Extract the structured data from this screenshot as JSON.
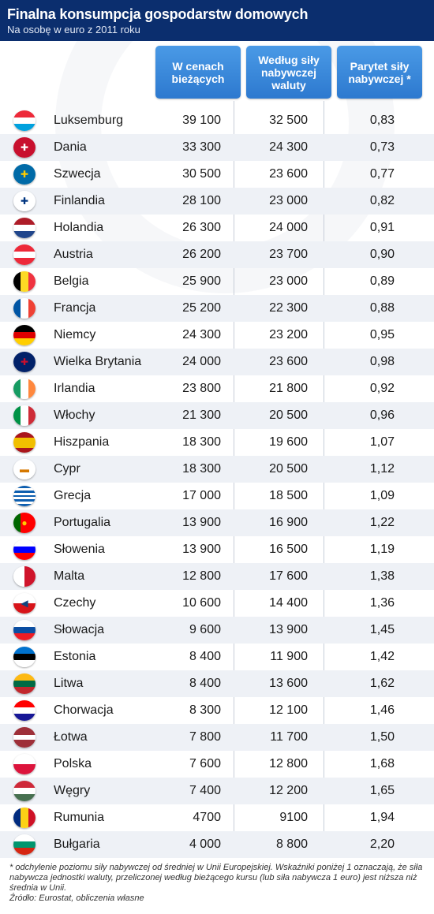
{
  "header": {
    "title": "Finalna konsumpcja gospodarstw domowych",
    "subtitle": "Na osobę w euro z 2011 roku"
  },
  "columns": [
    "W cenach bieżących",
    "Według siły nabywczej waluty",
    "Parytet siły nabywczej *"
  ],
  "chart_data": {
    "type": "table",
    "title": "Finalna konsumpcja gospodarstw domowych",
    "subtitle": "Na osobę w euro z 2011 roku",
    "columns": [
      "W cenach bieżących",
      "Według siły nabywczej waluty",
      "Parytet siły nabywczej *"
    ],
    "rows": [
      {
        "country": "Luksemburg",
        "current": "39 100",
        "ppp_value": "32 500",
        "parity": "0,83"
      },
      {
        "country": "Dania",
        "current": "33 300",
        "ppp_value": "24 300",
        "parity": "0,73"
      },
      {
        "country": "Szwecja",
        "current": "30 500",
        "ppp_value": "23 600",
        "parity": "0,77"
      },
      {
        "country": "Finlandia",
        "current": "28 100",
        "ppp_value": "23 000",
        "parity": "0,82"
      },
      {
        "country": "Holandia",
        "current": "26 300",
        "ppp_value": "24 000",
        "parity": "0,91"
      },
      {
        "country": "Austria",
        "current": "26 200",
        "ppp_value": "23 700",
        "parity": "0,90"
      },
      {
        "country": "Belgia",
        "current": "25 900",
        "ppp_value": "23 000",
        "parity": "0,89"
      },
      {
        "country": "Francja",
        "current": "25 200",
        "ppp_value": "22 300",
        "parity": "0,88"
      },
      {
        "country": "Niemcy",
        "current": "24 300",
        "ppp_value": "23 200",
        "parity": "0,95"
      },
      {
        "country": "Wielka Brytania",
        "current": "24 000",
        "ppp_value": "23 600",
        "parity": "0,98"
      },
      {
        "country": "Irlandia",
        "current": "23 800",
        "ppp_value": "21 800",
        "parity": "0,92"
      },
      {
        "country": "Włochy",
        "current": "21 300",
        "ppp_value": "20 500",
        "parity": "0,96"
      },
      {
        "country": "Hiszpania",
        "current": "18 300",
        "ppp_value": "19 600",
        "parity": "1,07"
      },
      {
        "country": "Cypr",
        "current": "18 300",
        "ppp_value": "20 500",
        "parity": "1,12"
      },
      {
        "country": "Grecja",
        "current": "17 000",
        "ppp_value": "18 500",
        "parity": "1,09"
      },
      {
        "country": "Portugalia",
        "current": "13 900",
        "ppp_value": "16 900",
        "parity": "1,22"
      },
      {
        "country": "Słowenia",
        "current": "13 900",
        "ppp_value": "16 500",
        "parity": "1,19"
      },
      {
        "country": "Malta",
        "current": "12 800",
        "ppp_value": "17 600",
        "parity": "1,38"
      },
      {
        "country": "Czechy",
        "current": "10 600",
        "ppp_value": "14 400",
        "parity": "1,36"
      },
      {
        "country": "Słowacja",
        "current": "9 600",
        "ppp_value": "13 900",
        "parity": "1,45"
      },
      {
        "country": "Estonia",
        "current": "8 400",
        "ppp_value": "11 900",
        "parity": "1,42"
      },
      {
        "country": "Litwa",
        "current": "8 400",
        "ppp_value": "13 600",
        "parity": "1,62"
      },
      {
        "country": "Chorwacja",
        "current": "8 300",
        "ppp_value": "12 100",
        "parity": "1,46"
      },
      {
        "country": "Łotwa",
        "current": "7 800",
        "ppp_value": "11 700",
        "parity": "1,50"
      },
      {
        "country": "Polska",
        "current": "7 600",
        "ppp_value": "12 800",
        "parity": "1,68"
      },
      {
        "country": "Węgry",
        "current": "7 400",
        "ppp_value": "12 200",
        "parity": "1,65"
      },
      {
        "country": "Rumunia",
        "current": "4700",
        "ppp_value": "9100",
        "parity": "1,94"
      },
      {
        "country": "Bułgaria",
        "current": "4 000",
        "ppp_value": "8 800",
        "parity": "2,20"
      }
    ]
  },
  "flags": {
    "Luksemburg": {
      "layout": "v",
      "colors": [
        "#ed2939",
        "#ffffff",
        "#00a1de"
      ]
    },
    "Dania": {
      "layout": "v",
      "colors": [
        "#c8102e",
        "#c8102e"
      ],
      "icon": "nordic-cross",
      "glyph": "✚",
      "glyph_color": "#ffffff"
    },
    "Szwecja": {
      "layout": "v",
      "colors": [
        "#006aa7",
        "#006aa7"
      ],
      "icon": "nordic-cross",
      "glyph": "✚",
      "glyph_color": "#fecc00"
    },
    "Finlandia": {
      "layout": "v",
      "colors": [
        "#ffffff",
        "#ffffff"
      ],
      "icon": "nordic-cross",
      "glyph": "✚",
      "glyph_color": "#003580"
    },
    "Holandia": {
      "layout": "v",
      "colors": [
        "#ae1c28",
        "#ffffff",
        "#21468b"
      ]
    },
    "Austria": {
      "layout": "v",
      "colors": [
        "#ed2939",
        "#ffffff",
        "#ed2939"
      ]
    },
    "Belgia": {
      "layout": "h",
      "colors": [
        "#000000",
        "#fdda24",
        "#ef3340"
      ]
    },
    "Francja": {
      "layout": "h",
      "colors": [
        "#0055a4",
        "#ffffff",
        "#ef4135"
      ]
    },
    "Niemcy": {
      "layout": "v",
      "colors": [
        "#000000",
        "#dd0000",
        "#ffce00"
      ]
    },
    "Wielka Brytania": {
      "layout": "v",
      "colors": [
        "#012169",
        "#012169"
      ],
      "icon": "union-jack",
      "glyph": "✚",
      "glyph_color": "#c8102e"
    },
    "Irlandia": {
      "layout": "h",
      "colors": [
        "#169b62",
        "#ffffff",
        "#ff883e"
      ]
    },
    "Włochy": {
      "layout": "h",
      "colors": [
        "#009246",
        "#ffffff",
        "#ce2b37"
      ]
    },
    "Hiszpania": {
      "layout": "v",
      "colors": [
        "#aa151b",
        "#f1bf00",
        "#f1bf00",
        "#aa151b"
      ]
    },
    "Cypr": {
      "layout": "v",
      "colors": [
        "#ffffff",
        "#ffffff"
      ],
      "icon": "cyprus-map",
      "glyph": "▬",
      "glyph_color": "#d57800"
    },
    "Grecja": {
      "layout": "v",
      "colors": [
        "#0d5eaf",
        "#ffffff",
        "#0d5eaf",
        "#ffffff",
        "#0d5eaf",
        "#ffffff",
        "#0d5eaf",
        "#ffffff",
        "#0d5eaf"
      ]
    },
    "Portugalia": {
      "layout": "h",
      "colors": [
        "#006600",
        "#ff0000",
        "#ff0000"
      ],
      "icon": "armillary-sphere",
      "glyph": "●",
      "glyph_color": "#ffcc00"
    },
    "Słowenia": {
      "layout": "v",
      "colors": [
        "#ffffff",
        "#0000ff",
        "#ff0000"
      ]
    },
    "Malta": {
      "layout": "h",
      "colors": [
        "#ffffff",
        "#cf142b"
      ]
    },
    "Czechy": {
      "layout": "v",
      "colors": [
        "#ffffff",
        "#d7141a"
      ],
      "icon": "blue-triangle",
      "glyph": "◀",
      "glyph_color": "#11457e"
    },
    "Słowacja": {
      "layout": "v",
      "colors": [
        "#ffffff",
        "#0b4ea2",
        "#ee1c25"
      ]
    },
    "Estonia": {
      "layout": "v",
      "colors": [
        "#0072ce",
        "#000000",
        "#ffffff"
      ]
    },
    "Litwa": {
      "layout": "v",
      "colors": [
        "#fdb913",
        "#006a44",
        "#c1272d"
      ]
    },
    "Chorwacja": {
      "layout": "v",
      "colors": [
        "#ff0000",
        "#ffffff",
        "#171796"
      ]
    },
    "Łotwa": {
      "layout": "v",
      "colors": [
        "#9e3039",
        "#9e3039",
        "#ffffff",
        "#9e3039",
        "#9e3039"
      ]
    },
    "Polska": {
      "layout": "v",
      "colors": [
        "#ffffff",
        "#dc143c"
      ]
    },
    "Węgry": {
      "layout": "v",
      "colors": [
        "#ce2939",
        "#ffffff",
        "#477050"
      ]
    },
    "Rumunia": {
      "layout": "h",
      "colors": [
        "#002b7f",
        "#fcd116",
        "#ce1126"
      ]
    },
    "Bułgaria": {
      "layout": "v",
      "colors": [
        "#ffffff",
        "#00966e",
        "#d62612"
      ]
    }
  },
  "footer": {
    "note": "* odchylenie poziomu siły nabywczej od średniej w Unii Europejskiej. Wskaźniki poniżej 1 oznaczają, że siła nabywcza jednostki waluty, przeliczonej według bieżącego kursu (lub siła nabywcza 1 euro) jest niższa niż średnia w Unii.",
    "source": "Źródło: Eurostat, obliczenia własne"
  }
}
